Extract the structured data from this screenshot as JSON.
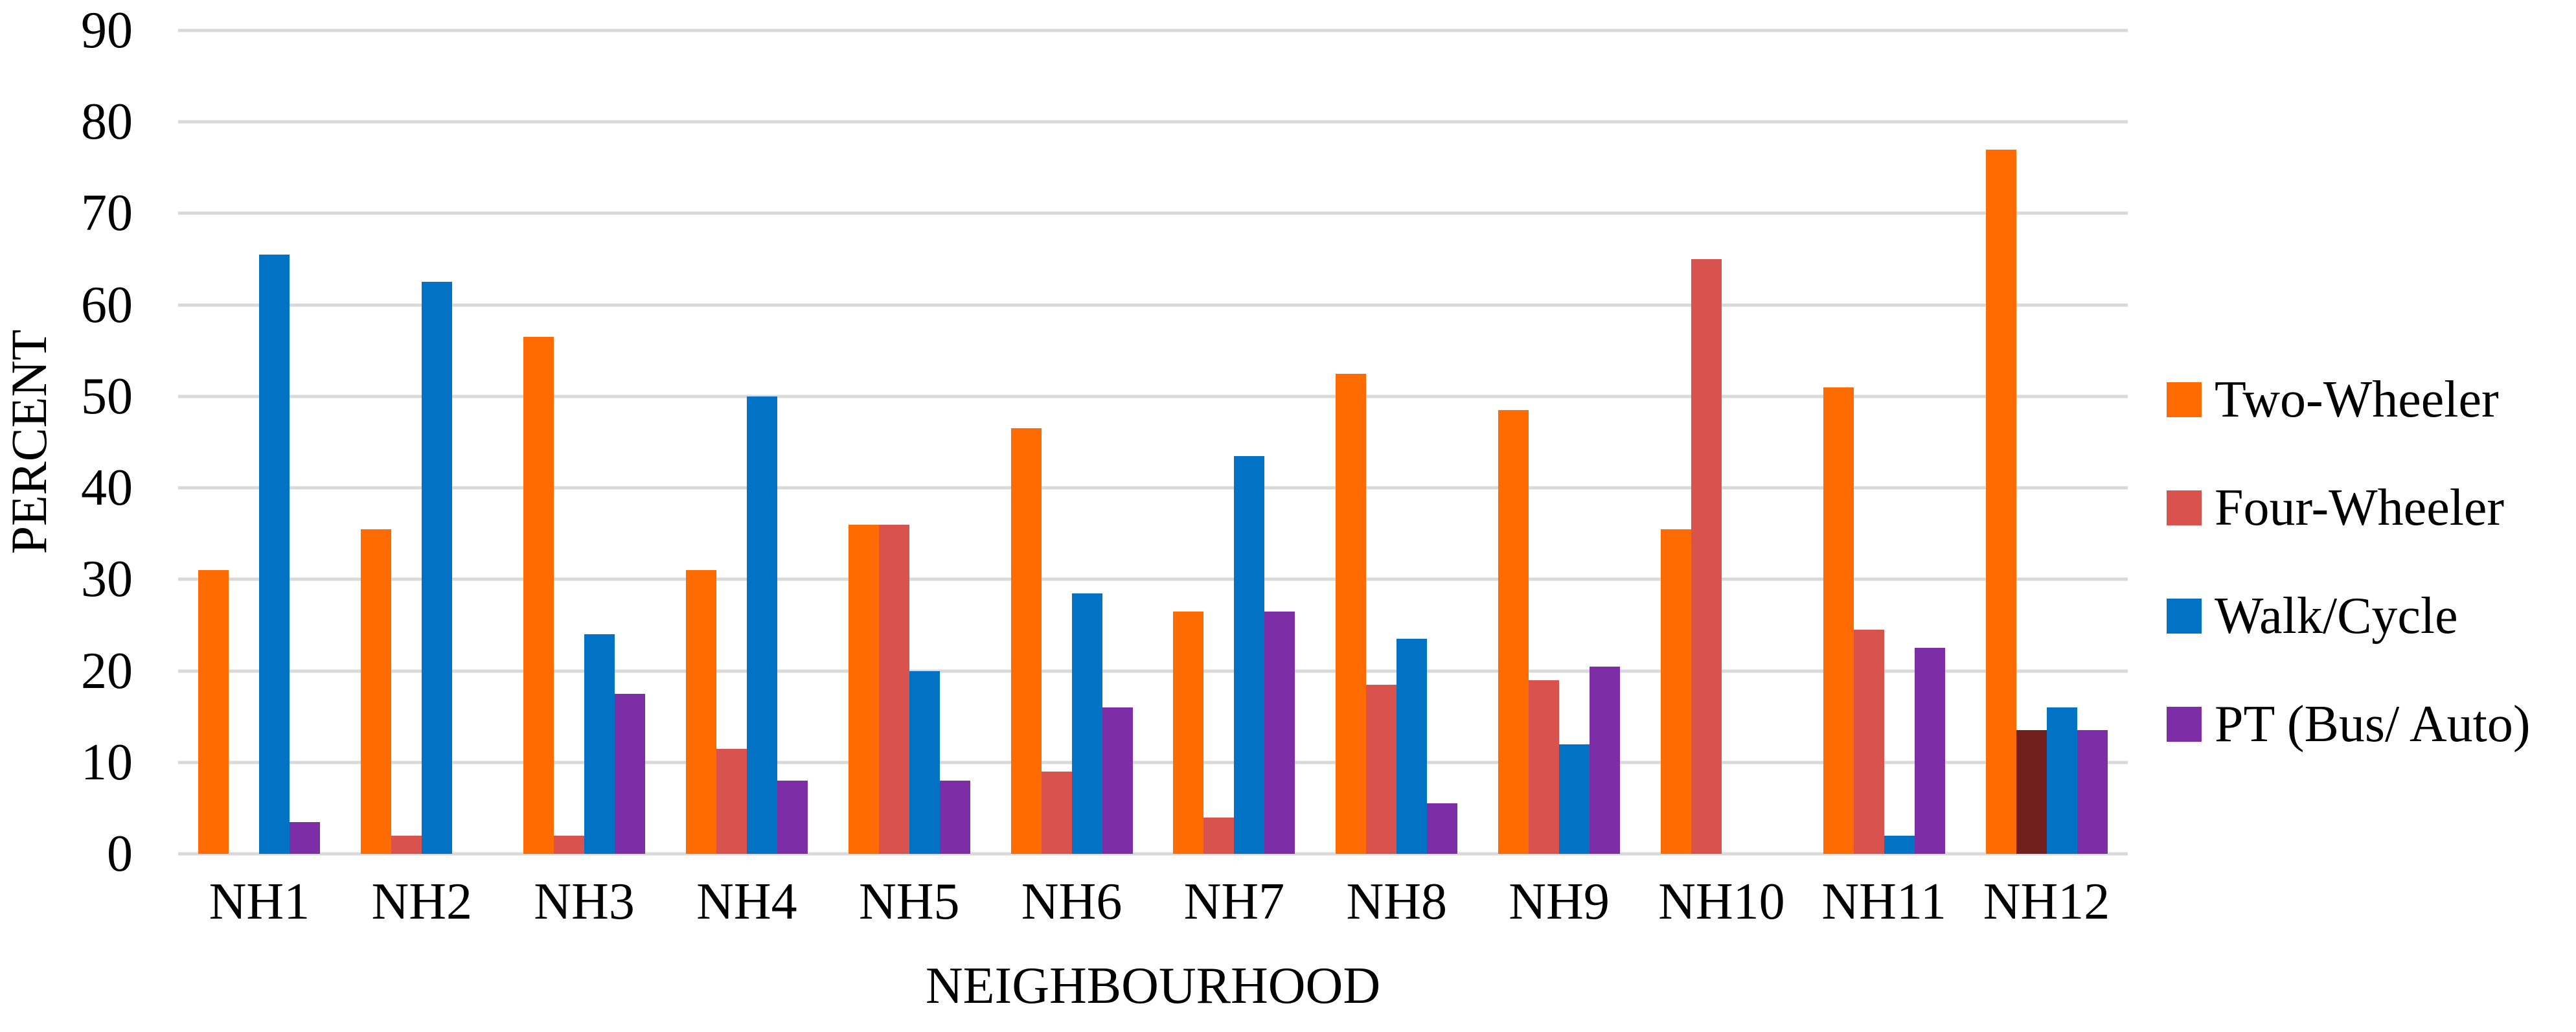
{
  "chart_data": {
    "type": "bar",
    "title": "",
    "xlabel": "NEIGHBOURHOOD",
    "ylabel": "PERCENT",
    "ylim": [
      0,
      90
    ],
    "yticks": [
      0,
      10,
      20,
      30,
      40,
      50,
      60,
      70,
      80,
      90
    ],
    "grid": "horizontal",
    "gridline_color": "#d9d9d9",
    "legend_position": "right",
    "categories": [
      "NH1",
      "NH2",
      "NH3",
      "NH4",
      "NH5",
      "NH6",
      "NH7",
      "NH8",
      "NH9",
      "NH10",
      "NH11",
      "NH12"
    ],
    "series": [
      {
        "name": "Two-Wheeler",
        "color": "#fe6c01",
        "values": [
          31,
          35.5,
          56.5,
          31,
          36,
          46.5,
          26.5,
          52.5,
          48.5,
          35.5,
          51,
          77
        ]
      },
      {
        "name": "Four-Wheeler",
        "color": "#d9534e",
        "values": [
          0,
          2,
          2,
          11.5,
          36,
          9,
          4,
          18.5,
          19,
          65,
          24.5,
          13.5
        ]
      },
      {
        "name": "Walk/Cycle",
        "color": "#0172c4",
        "values": [
          65.5,
          62.5,
          24,
          50,
          20,
          28.5,
          43.5,
          23.5,
          12,
          0,
          2,
          16
        ]
      },
      {
        "name": "PT (Bus/ Auto)",
        "color": "#7d2ea7",
        "values": [
          3.5,
          0,
          17.5,
          8,
          8,
          16,
          26.5,
          5.5,
          20.5,
          0,
          22.5,
          13.5
        ]
      }
    ],
    "bar_color_overrides": [
      {
        "series": "Four-Wheeler",
        "category": "NH12",
        "color": "#72201d"
      }
    ]
  }
}
